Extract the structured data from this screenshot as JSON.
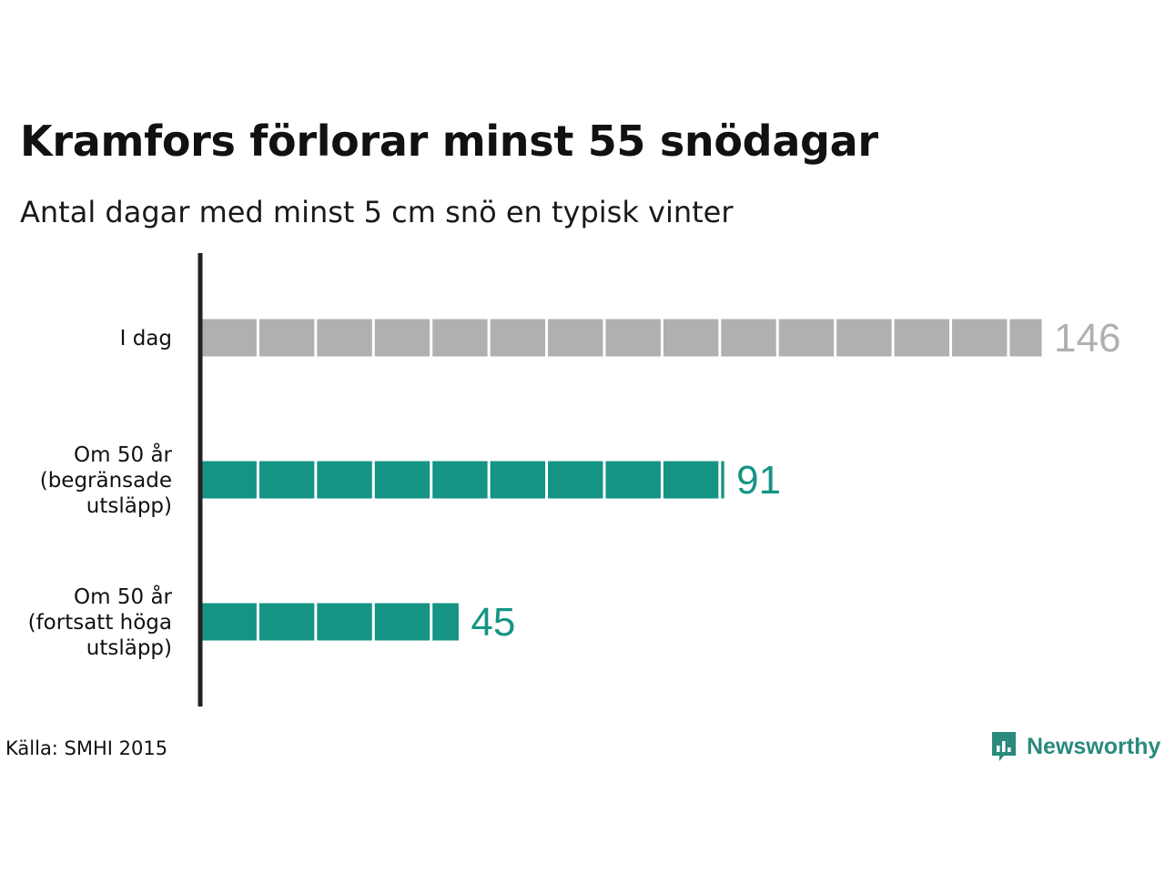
{
  "title": "Kramfors förlorar minst 55 snödagar",
  "subtitle": "Antal dagar med minst 5 cm snö en typisk vinter",
  "source": "Källa: SMHI 2015",
  "brand": {
    "name": "Newsworthy",
    "icon": "newsworthy-logo-icon",
    "color": "#2a8a7c"
  },
  "colors": {
    "today": "#b0b0b0",
    "future": "#159484",
    "axis": "#222222"
  },
  "chart_data": {
    "type": "bar",
    "orientation": "horizontal",
    "categories": [
      [
        "I dag"
      ],
      [
        "Om 50 år",
        "(begränsade",
        "utsläpp)"
      ],
      [
        "Om 50 år",
        "(fortsatt höga",
        "utsläpp)"
      ]
    ],
    "values": [
      146,
      91,
      45
    ],
    "value_labels": [
      "146",
      "91",
      "45"
    ],
    "segment_size": 10,
    "grid": false,
    "legend": "none"
  }
}
